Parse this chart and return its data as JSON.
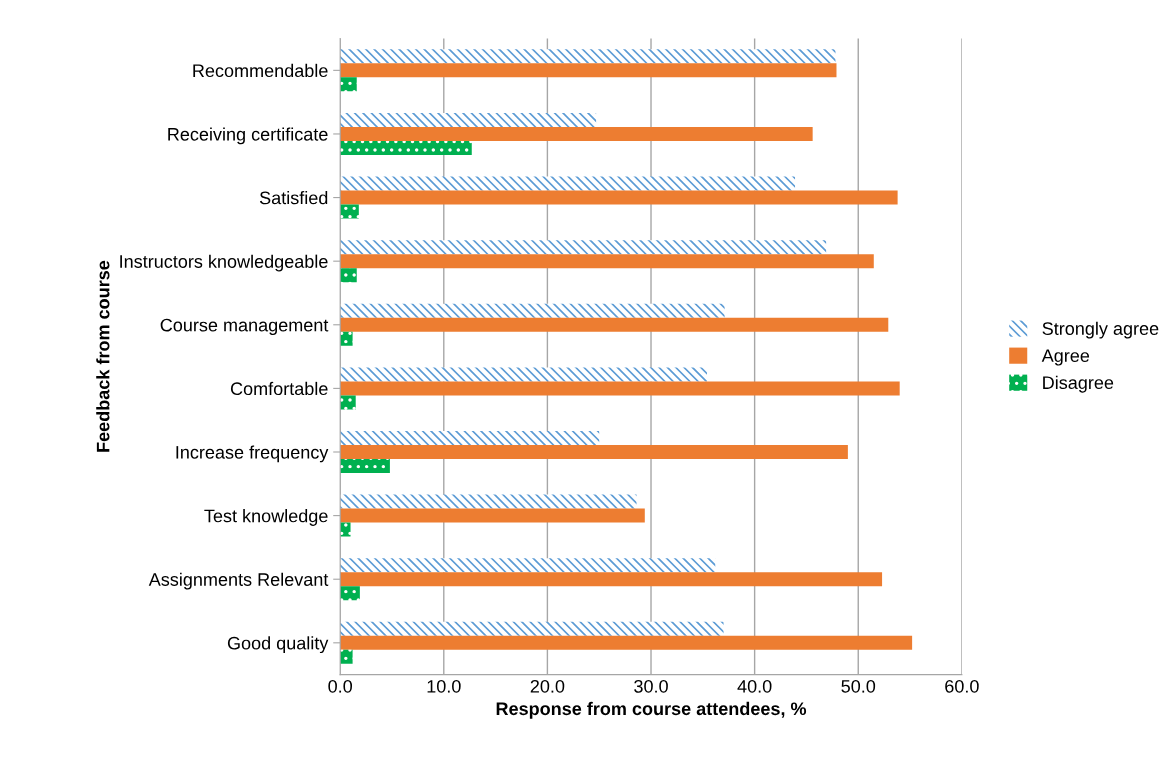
{
  "chart_data": {
    "type": "bar",
    "orientation": "horizontal",
    "xlabel": "Response from course attendees, %",
    "ylabel": "Feedback from course",
    "categories": [
      "Recommendable",
      "Receiving certificate",
      "Satisfied",
      "Instructors knowledgeable",
      "Course management",
      "Comfortable",
      "Increase frequency",
      "Test knowledge",
      "Assignments Relevant",
      "Good quality"
    ],
    "series": [
      {
        "name": "Strongly agree",
        "color": "#5b9bd5",
        "values": [
          47.8,
          24.7,
          43.9,
          46.9,
          37.1,
          35.4,
          25.0,
          28.6,
          36.2,
          37.0
        ]
      },
      {
        "name": "Agree",
        "color": "#ed7d31",
        "values": [
          47.9,
          45.6,
          53.8,
          51.5,
          52.9,
          54.0,
          49.0,
          29.4,
          52.3,
          55.2
        ]
      },
      {
        "name": "Disagree",
        "color": "#00b050",
        "values": [
          1.6,
          12.7,
          1.8,
          1.6,
          1.2,
          1.5,
          4.8,
          1.0,
          1.9,
          1.2
        ]
      }
    ],
    "xlim": [
      0,
      60
    ],
    "xticks": [
      {
        "value": 0,
        "label": "0.0"
      },
      {
        "value": 10,
        "label": "10.0"
      },
      {
        "value": 20,
        "label": "20.0"
      },
      {
        "value": 30,
        "label": "30.0"
      },
      {
        "value": 40,
        "label": "40.0"
      },
      {
        "value": 50,
        "label": "50.0"
      },
      {
        "value": 60,
        "label": "60.0"
      }
    ],
    "grid": "x",
    "legend": "right"
  }
}
